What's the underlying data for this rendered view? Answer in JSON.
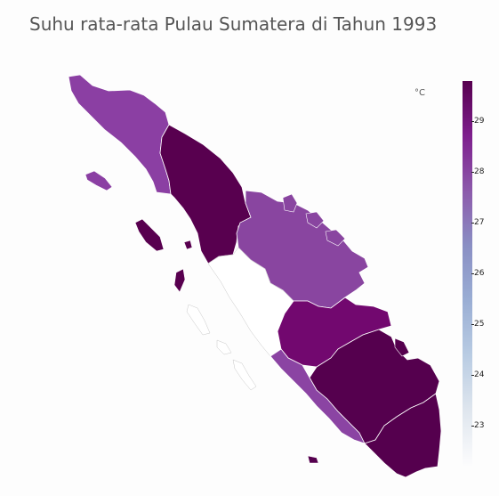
{
  "title": "Suhu rata-rata Pulau Sumatera di Tahun 1993",
  "legend": {
    "unit": "°C",
    "min": 22.2,
    "max": 29.8,
    "ticks": [
      "23",
      "24",
      "25",
      "26",
      "27",
      "28",
      "29"
    ],
    "tick_values": [
      23,
      24,
      25,
      26,
      27,
      28,
      29
    ],
    "colors": [
      "#fcfcfd",
      "#dfe6ee",
      "#b9cce3",
      "#9aaed4",
      "#8a8fc4",
      "#8c5aab",
      "#7e1f8d",
      "#57004f"
    ]
  },
  "regions": [
    {
      "name": "Aceh",
      "value": 27.6,
      "color": "#8b3fa3"
    },
    {
      "name": "Sumatera Utara",
      "value": 29.7,
      "color": "#58004f"
    },
    {
      "name": "Nias",
      "value": 29.7,
      "color": "#58004f"
    },
    {
      "name": "Simeulue",
      "value": 27.6,
      "color": "#8b3fa3"
    },
    {
      "name": "Riau",
      "value": 27.6,
      "color": "#8945a0"
    },
    {
      "name": "Sumatera Barat",
      "value": null,
      "color": "#ffffff"
    },
    {
      "name": "Jambi",
      "value": 28.7,
      "color": "#72086f"
    },
    {
      "name": "Bengkulu",
      "value": 27.6,
      "color": "#8b44a3"
    },
    {
      "name": "Sumatera Selatan",
      "value": 29.7,
      "color": "#55004e"
    },
    {
      "name": "Lampung",
      "value": 29.7,
      "color": "#55004e"
    }
  ]
}
